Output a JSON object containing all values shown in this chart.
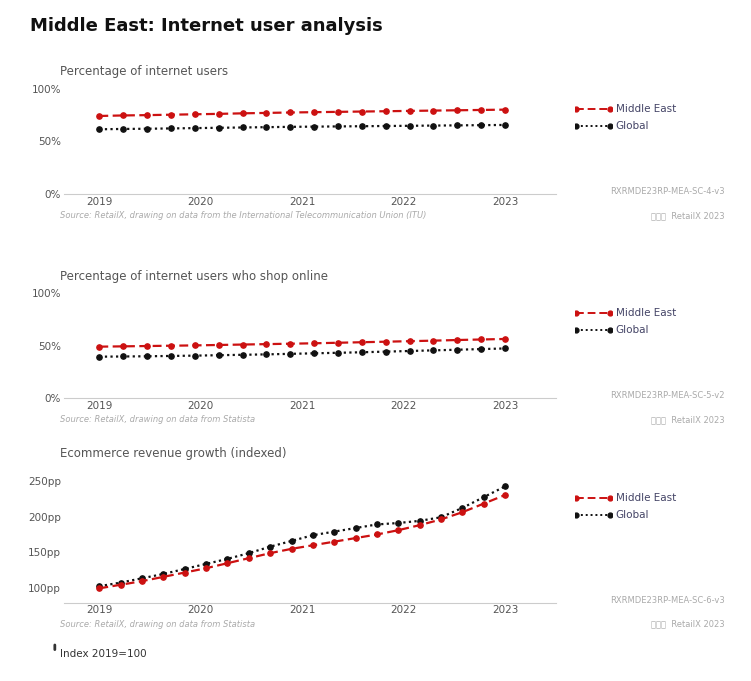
{
  "title": "Middle East: Internet user analysis",
  "bg_color": "#ffffff",
  "chart1": {
    "subtitle": "Percentage of internet users",
    "source": "Source: RetailX, drawing on data from the International Telecommunication Union (ITU)",
    "code": "RXRMDE23RP-MEA-SC-4-v3",
    "copyright": "©®©  RetailX 2023",
    "me_vals": [
      0.74,
      0.745,
      0.748,
      0.752,
      0.756,
      0.76,
      0.765,
      0.769,
      0.773,
      0.776,
      0.779,
      0.782,
      0.785,
      0.788,
      0.791,
      0.794,
      0.797,
      0.8
    ],
    "gl_vals": [
      0.614,
      0.617,
      0.619,
      0.622,
      0.625,
      0.628,
      0.631,
      0.634,
      0.637,
      0.639,
      0.641,
      0.643,
      0.645,
      0.647,
      0.649,
      0.651,
      0.653,
      0.655
    ],
    "ylim": [
      0,
      1.0
    ],
    "yticks": [
      0,
      0.5,
      1.0
    ],
    "ytick_labels": [
      "0%",
      "50%",
      "100%"
    ]
  },
  "chart2": {
    "subtitle": "Percentage of internet users who shop online",
    "source": "Source: RetailX, drawing on data from Statista",
    "code": "RXRMDE23RP-MEA-SC-5-v2",
    "copyright": "©®©  RetailX 2023",
    "me_vals": [
      0.49,
      0.493,
      0.496,
      0.499,
      0.502,
      0.506,
      0.51,
      0.514,
      0.518,
      0.522,
      0.527,
      0.532,
      0.537,
      0.542,
      0.547,
      0.553,
      0.558,
      0.563
    ],
    "gl_vals": [
      0.395,
      0.397,
      0.399,
      0.402,
      0.405,
      0.409,
      0.413,
      0.417,
      0.422,
      0.427,
      0.432,
      0.437,
      0.443,
      0.449,
      0.455,
      0.461,
      0.467,
      0.473
    ],
    "ylim": [
      0,
      1.0
    ],
    "yticks": [
      0,
      0.5,
      1.0
    ],
    "ytick_labels": [
      "0%",
      "50%",
      "100%"
    ]
  },
  "chart3": {
    "subtitle": "Ecommerce revenue growth (indexed)",
    "source": "Source: RetailX, drawing on data from Statista",
    "code": "RXRMDE23RP-MEA-SC-6-v3",
    "copyright": "©®©  RetailX 2023",
    "note": "Index 2019=100",
    "me_vals": [
      100,
      105,
      110,
      116,
      122,
      128,
      135,
      142,
      149,
      155,
      160,
      165,
      170,
      175,
      181,
      188,
      196,
      206,
      218,
      230
    ],
    "gl_vals": [
      103,
      108,
      114,
      120,
      127,
      134,
      141,
      149,
      158,
      166,
      174,
      179,
      184,
      189,
      191,
      194,
      199,
      212,
      227,
      242
    ],
    "ylim": [
      80,
      265
    ],
    "yticks": [
      100,
      150,
      200,
      250
    ],
    "ytick_labels": [
      "100pp",
      "150pp",
      "200pp",
      "250pp"
    ]
  },
  "me_color": "#cc1111",
  "gl_color": "#111111",
  "subtitle_color": "#555555",
  "source_color": "#aaaaaa",
  "tick_color": "#555555",
  "axis_color": "#cccccc",
  "title_color": "#111111"
}
